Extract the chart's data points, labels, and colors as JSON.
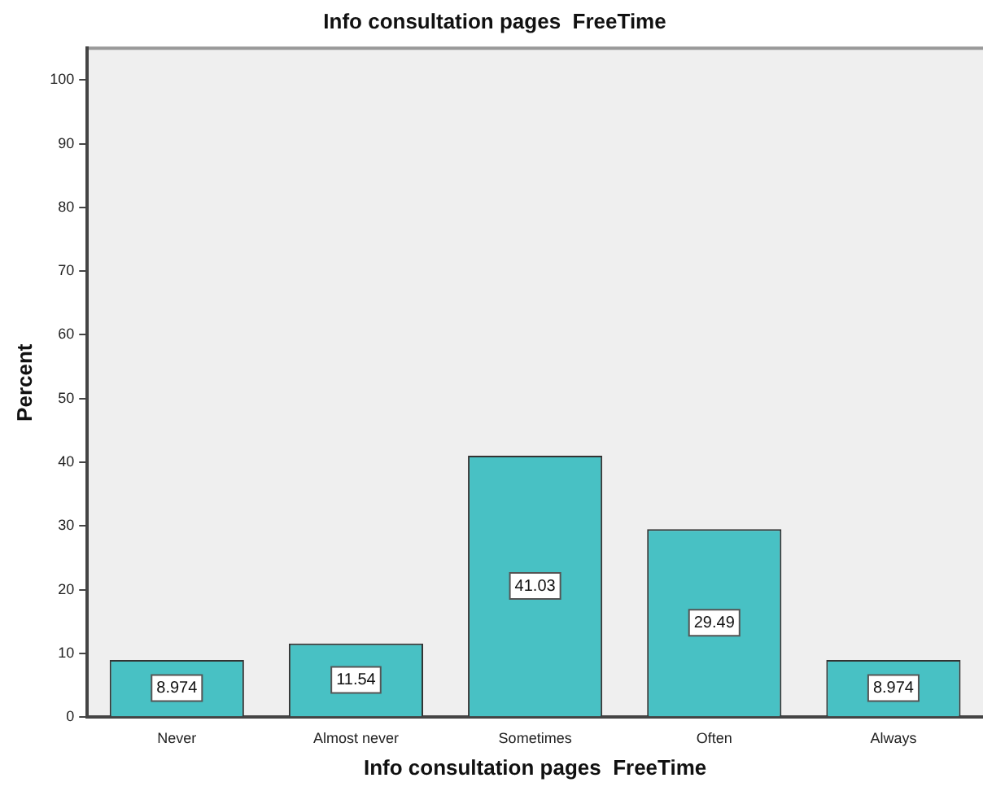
{
  "chart_data": {
    "type": "bar",
    "title": "Info consultation pages  FreeTime",
    "xlabel": "Info consultation pages  FreeTime",
    "ylabel": "Percent",
    "categories": [
      "Never",
      "Almost never",
      "Sometimes",
      "Often",
      "Always"
    ],
    "values": [
      8.974,
      11.54,
      41.03,
      29.49,
      8.974
    ],
    "color": "#48c1c4",
    "ylim": [
      0,
      105
    ],
    "yticks": [
      0,
      10,
      20,
      30,
      40,
      50,
      60,
      70,
      80,
      90,
      100
    ],
    "grid": false,
    "legend": false,
    "data_labels": true
  }
}
